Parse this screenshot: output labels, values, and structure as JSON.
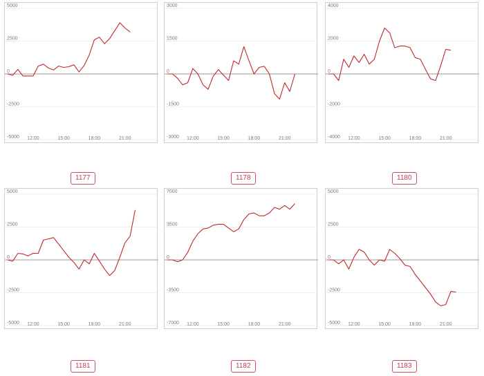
{
  "colors": {
    "line": "#c0262d",
    "badge": "#c53a53",
    "zero_line": "#9a9a9a"
  },
  "charts": [
    {
      "id": "1177",
      "chart_data": {
        "type": "line",
        "title": "1177",
        "x_ticks": [
          "12:00",
          "15:00",
          "18:00",
          "21:00"
        ],
        "y_ticks": [
          "5000",
          "2500",
          "0",
          "-2500",
          "-5000"
        ],
        "ylim": [
          -5000,
          5000
        ],
        "series": [
          {
            "x": [
              "09:30",
              "10:00",
              "10:30",
              "11:00",
              "11:30",
              "12:00",
              "12:30",
              "13:00",
              "13:30",
              "14:00",
              "14:30",
              "15:00",
              "15:30",
              "16:00",
              "16:30",
              "17:00",
              "17:30",
              "18:00",
              "18:30",
              "19:00",
              "19:30",
              "20:00",
              "20:30",
              "21:00",
              "21:30",
              "22:00"
            ],
            "values": [
              0,
              -100,
              350,
              -150,
              -150,
              -150,
              600,
              750,
              450,
              300,
              600,
              500,
              550,
              700,
              150,
              650,
              1450,
              2600,
              2800,
              2300,
              2700,
              3300,
              3900,
              3500,
              3200,
              null
            ]
          }
        ]
      }
    },
    {
      "id": "1178",
      "chart_data": {
        "type": "line",
        "title": "1178",
        "x_ticks": [
          "12:00",
          "15:00",
          "18:00",
          "21:00"
        ],
        "y_ticks": [
          "3000",
          "1500",
          "0",
          "-1500",
          "-3000"
        ],
        "ylim": [
          -3000,
          3000
        ],
        "series": [
          {
            "x": [
              "09:30",
              "10:00",
              "10:30",
              "11:00",
              "11:30",
              "12:00",
              "12:30",
              "13:00",
              "13:30",
              "14:00",
              "14:30",
              "15:00",
              "15:30",
              "16:00",
              "16:30",
              "17:00",
              "17:30",
              "18:00",
              "18:30",
              "19:00",
              "19:30",
              "20:00",
              "20:30",
              "21:00",
              "21:30",
              "22:00"
            ],
            "values": [
              0,
              0,
              -200,
              -500,
              -400,
              250,
              0,
              -500,
              -700,
              -100,
              200,
              -50,
              -300,
              600,
              450,
              1250,
              600,
              0,
              300,
              350,
              0,
              -900,
              -1150,
              -400,
              -800,
              0
            ]
          }
        ]
      }
    },
    {
      "id": "1180",
      "chart_data": {
        "type": "line",
        "title": "1180",
        "x_ticks": [
          "12:00",
          "15:00",
          "18:00",
          "21:00"
        ],
        "y_ticks": [
          "4000",
          "2000",
          "0",
          "-2000",
          "-4000"
        ],
        "ylim": [
          -4000,
          4000
        ],
        "series": [
          {
            "x": [
              "09:30",
              "10:00",
              "10:30",
              "11:00",
              "11:30",
              "12:00",
              "12:30",
              "13:00",
              "13:30",
              "14:00",
              "14:30",
              "15:00",
              "15:30",
              "16:00",
              "16:30",
              "17:00",
              "17:30",
              "18:00",
              "18:30",
              "19:00",
              "19:30",
              "20:00",
              "20:30",
              "21:00",
              "21:30",
              "22:00"
            ],
            "values": [
              0,
              0,
              -400,
              900,
              400,
              1100,
              700,
              1200,
              600,
              900,
              2000,
              2800,
              2500,
              1600,
              1700,
              1700,
              1600,
              1000,
              900,
              300,
              -300,
              -400,
              500,
              1500,
              1450,
              null
            ]
          }
        ]
      }
    },
    {
      "id": "1181",
      "chart_data": {
        "type": "line",
        "title": "1181",
        "x_ticks": [
          "12:00",
          "15:00",
          "18:00",
          "21:00"
        ],
        "y_ticks": [
          "5000",
          "2500",
          "0",
          "-2500",
          "-5000"
        ],
        "ylim": [
          -5000,
          5000
        ],
        "series": [
          {
            "x": [
              "09:30",
              "10:00",
              "10:30",
              "11:00",
              "11:30",
              "12:00",
              "12:30",
              "13:00",
              "13:30",
              "14:00",
              "14:30",
              "15:00",
              "15:30",
              "16:00",
              "16:30",
              "17:00",
              "17:30",
              "18:00",
              "18:30",
              "19:00",
              "19:30",
              "20:00",
              "20:30",
              "21:00",
              "21:30",
              "22:00"
            ],
            "values": [
              0,
              -100,
              500,
              450,
              300,
              500,
              500,
              1500,
              1600,
              1700,
              1200,
              700,
              200,
              -200,
              -700,
              0,
              -300,
              500,
              -100,
              -700,
              -1200,
              -800,
              200,
              1300,
              1800,
              3800
            ]
          }
        ]
      }
    },
    {
      "id": "1182",
      "chart_data": {
        "type": "line",
        "title": "1182",
        "x_ticks": [
          "12:00",
          "15:00",
          "18:00",
          "21:00"
        ],
        "y_ticks": [
          "7000",
          "3500",
          "0",
          "-3500",
          "-7000"
        ],
        "ylim": [
          -7000,
          7000
        ],
        "series": [
          {
            "x": [
              "09:30",
              "10:00",
              "10:30",
              "11:00",
              "11:30",
              "12:00",
              "12:30",
              "13:00",
              "13:30",
              "14:00",
              "14:30",
              "15:00",
              "15:30",
              "16:00",
              "16:30",
              "17:00",
              "17:30",
              "18:00",
              "18:30",
              "19:00",
              "19:30",
              "20:00",
              "20:30",
              "21:00",
              "21:30",
              "22:00"
            ],
            "values": [
              0,
              0,
              -200,
              0,
              800,
              2000,
              2800,
              3300,
              3400,
              3700,
              3800,
              3800,
              3400,
              3000,
              3300,
              4300,
              4900,
              5000,
              4700,
              4700,
              5000,
              5600,
              5400,
              5800,
              5400,
              6000
            ]
          }
        ]
      }
    },
    {
      "id": "1183",
      "chart_data": {
        "type": "line",
        "title": "1183",
        "x_ticks": [
          "12:00",
          "15:00",
          "18:00",
          "21:00"
        ],
        "y_ticks": [
          "5000",
          "2500",
          "0",
          "-2500",
          "-5000"
        ],
        "ylim": [
          -5000,
          5000
        ],
        "series": [
          {
            "x": [
              "09:30",
              "10:00",
              "10:30",
              "11:00",
              "11:30",
              "12:00",
              "12:30",
              "13:00",
              "13:30",
              "14:00",
              "14:30",
              "15:00",
              "15:30",
              "16:00",
              "16:30",
              "17:00",
              "17:30",
              "18:00",
              "18:30",
              "19:00",
              "19:30",
              "20:00",
              "20:30",
              "21:00",
              "21:30",
              "22:00"
            ],
            "values": [
              0,
              0,
              -300,
              0,
              -700,
              200,
              800,
              600,
              0,
              -400,
              0,
              -100,
              800,
              500,
              100,
              -400,
              -500,
              -1100,
              -1600,
              -2100,
              -2600,
              -3200,
              -3500,
              -3400,
              -2400,
              -2450
            ]
          }
        ]
      }
    }
  ]
}
